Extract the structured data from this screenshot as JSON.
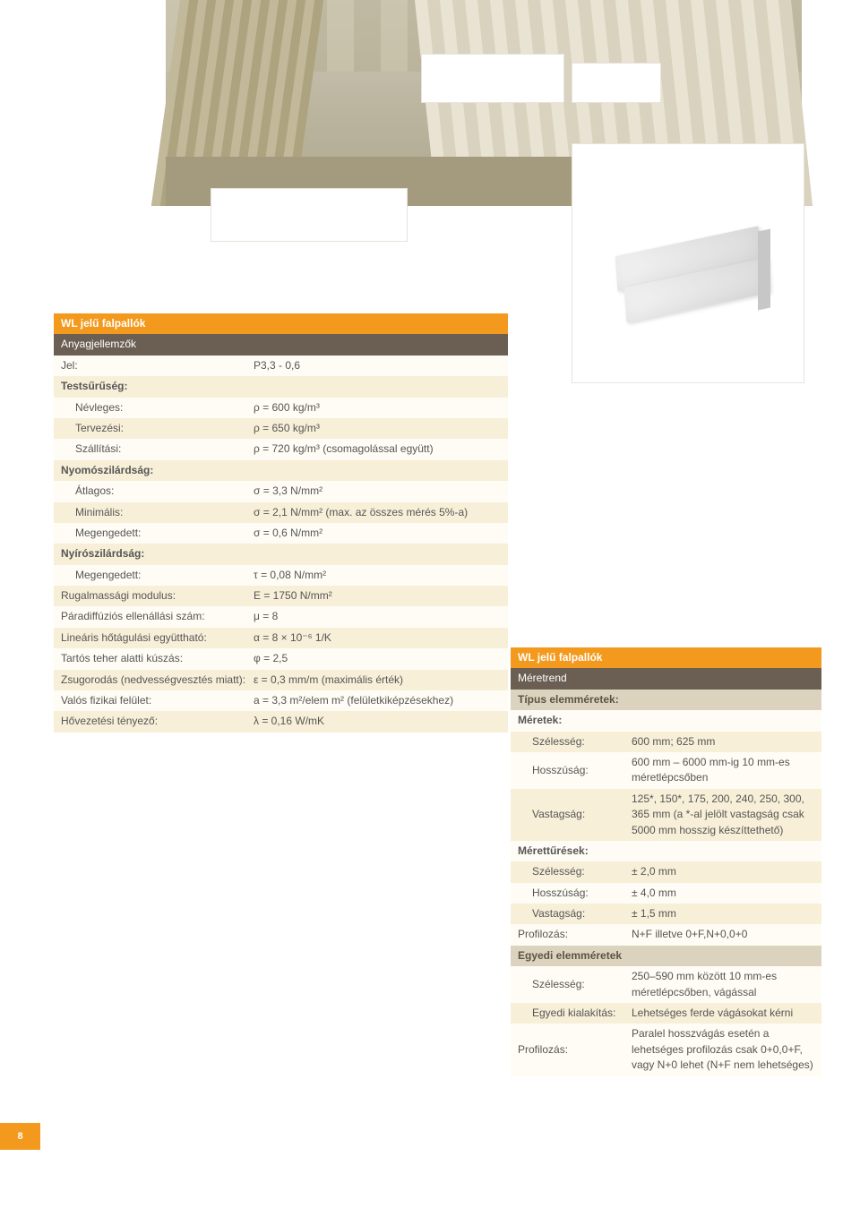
{
  "page_number": "8",
  "tables": {
    "left": {
      "title": "WL jelű falpallók",
      "section_material": "Anyagjellemzők",
      "rows": [
        {
          "style": "alt0",
          "k": "Jel:",
          "v": "P3,3 - 0,6"
        },
        {
          "style": "alt1",
          "span": true,
          "bold": true,
          "k": "Testsűrűség:"
        },
        {
          "style": "alt0",
          "indent": true,
          "k": "Névleges:",
          "v": "ρ = 600 kg/m³"
        },
        {
          "style": "alt1",
          "indent": true,
          "k": "Tervezési:",
          "v": "ρ = 650 kg/m³"
        },
        {
          "style": "alt0",
          "indent": true,
          "k": "Szállítási:",
          "v": "ρ = 720 kg/m³ (csomagolással együtt)"
        },
        {
          "style": "alt1",
          "span": true,
          "bold": true,
          "k": "Nyomószilárdság:"
        },
        {
          "style": "alt0",
          "indent": true,
          "k": "Átlagos:",
          "v": "σ = 3,3 N/mm²"
        },
        {
          "style": "alt1",
          "indent": true,
          "k": "Minimális:",
          "v": "σ = 2,1 N/mm² (max. az összes mérés 5%-a)"
        },
        {
          "style": "alt0",
          "indent": true,
          "k": "Megengedett:",
          "v": "σ = 0,6 N/mm²"
        },
        {
          "style": "alt1",
          "span": true,
          "bold": true,
          "k": "Nyírószilárdság:"
        },
        {
          "style": "alt0",
          "indent": true,
          "k": "Megengedett:",
          "v": "τ = 0,08 N/mm²"
        },
        {
          "style": "alt1",
          "k": "Rugalmassági modulus:",
          "v": "E = 1750 N/mm²"
        },
        {
          "style": "alt0",
          "k": "Páradiffúziós ellenállási szám:",
          "v": "μ = 8"
        },
        {
          "style": "alt1",
          "k": "Lineáris hőtágulási együttható:",
          "v": "α = 8 × 10⁻⁶ 1/K"
        },
        {
          "style": "alt0",
          "k": "Tartós teher alatti kúszás:",
          "v": "φ = 2,5"
        },
        {
          "style": "alt1",
          "k": "Zsugorodás (nedvességvesztés miatt):",
          "v": "ε = 0,3 mm/m (maximális érték)"
        },
        {
          "style": "alt0",
          "k": "Valós fizikai felület:",
          "v": "a = 3,3 m²/elem m² (felületkiképzésekhez)"
        },
        {
          "style": "alt1",
          "k": "Hővezetési tényező:",
          "v": "λ = 0,16 W/mK"
        }
      ]
    },
    "right": {
      "title": "WL jelű falpallók",
      "section_sizes": "Méretrend",
      "rows": [
        {
          "style": "hdr-beige",
          "span": true,
          "k": "Típus elemméretek:"
        },
        {
          "style": "alt0",
          "span": true,
          "bold": true,
          "k": "Méretek:"
        },
        {
          "style": "alt1",
          "indent": true,
          "k": "Szélesség:",
          "v": "600 mm; 625 mm"
        },
        {
          "style": "alt0",
          "indent": true,
          "k": "Hosszúság:",
          "v": "600 mm – 6000 mm-ig 10 mm-es méretlépcsőben"
        },
        {
          "style": "alt1",
          "indent": true,
          "k": "Vastagság:",
          "v": "125*, 150*, 175, 200, 240, 250, 300, 365 mm (a *-al jelölt vastagság csak 5000 mm hosszig készíttethető)"
        },
        {
          "style": "alt0",
          "span": true,
          "bold": true,
          "k": "Mérettűrések:"
        },
        {
          "style": "alt1",
          "indent": true,
          "k": "Szélesség:",
          "v": "± 2,0 mm"
        },
        {
          "style": "alt0",
          "indent": true,
          "k": "Hosszúság:",
          "v": "± 4,0 mm"
        },
        {
          "style": "alt1",
          "indent": true,
          "k": "Vastagság:",
          "v": "± 1,5 mm"
        },
        {
          "style": "alt0",
          "k": "Profilozás:",
          "v": "N+F illetve 0+F,N+0,0+0"
        },
        {
          "style": "hdr-beige",
          "span": true,
          "k": "Egyedi elemméretek"
        },
        {
          "style": "alt0",
          "indent": true,
          "k": "Szélesség:",
          "v": "250–590 mm között 10 mm-es méretlépcsőben, vágással"
        },
        {
          "style": "alt1",
          "indent": true,
          "k": "Egyedi kialakítás:",
          "v": "Lehetséges ferde vágásokat kérni"
        },
        {
          "style": "alt0",
          "k": "Profilozás:",
          "v": "Paralel hosszvágás esetén a lehetséges profilozás csak 0+0,0+F, vagy N+0 lehet (N+F nem lehetséges)"
        }
      ]
    }
  }
}
